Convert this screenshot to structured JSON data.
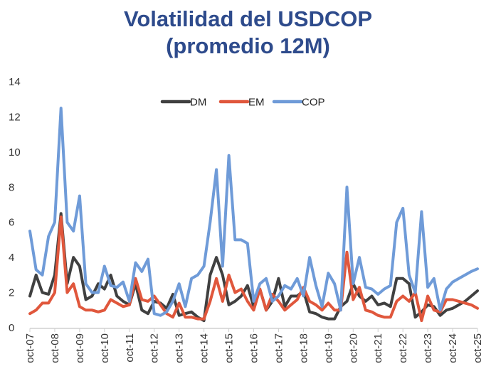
{
  "chart_data": {
    "type": "line",
    "title": "Volatilidad del USDCOP",
    "subtitle": "(promedio 12M)",
    "xlabel": "",
    "ylabel": "",
    "ylim": [
      0,
      14
    ],
    "yticks": [
      0,
      2,
      4,
      6,
      8,
      10,
      12,
      14
    ],
    "grid": false,
    "legend_position": "top-center",
    "xtick_labels": [
      "oct-07",
      "oct-08",
      "oct-09",
      "oct-10",
      "oct-11",
      "oct-12",
      "oct-13",
      "oct-14",
      "oct-15",
      "oct-16",
      "oct-17",
      "oct-18",
      "oct-19",
      "oct-20",
      "oct-21",
      "oct-22",
      "oct-23",
      "oct-24",
      "oct-25"
    ],
    "x_start": "oct-07",
    "x_step": "quarter",
    "series": [
      {
        "name": "DM",
        "color": "#404040",
        "values": [
          1.8,
          3.0,
          2.0,
          1.9,
          3.0,
          6.5,
          2.5,
          4.0,
          3.5,
          1.6,
          1.8,
          2.5,
          2.2,
          3.0,
          1.8,
          1.5,
          1.3,
          2.5,
          1.0,
          0.8,
          1.5,
          1.4,
          1.1,
          1.9,
          0.7,
          0.8,
          0.9,
          0.6,
          0.4,
          3.0,
          4.0,
          3.0,
          1.3,
          1.5,
          1.8,
          2.4,
          1.2,
          2.2,
          1.0,
          1.5,
          2.8,
          1.2,
          1.8,
          1.8,
          2.1,
          0.9,
          0.8,
          0.6,
          0.5,
          0.5,
          1.2,
          1.5,
          2.5,
          1.8,
          1.5,
          1.8,
          1.3,
          1.4,
          1.2,
          2.8,
          2.8,
          2.5,
          0.6,
          0.9,
          1.3,
          1.2,
          0.7,
          1.0,
          1.1,
          1.3,
          1.5,
          1.8,
          2.1
        ]
      },
      {
        "name": "EM",
        "color": "#e0573c",
        "values": [
          0.8,
          1.0,
          1.4,
          1.4,
          2.0,
          6.3,
          2.0,
          2.5,
          1.2,
          1.0,
          1.0,
          0.9,
          1.0,
          1.6,
          1.4,
          1.2,
          1.3,
          2.8,
          1.6,
          1.5,
          1.8,
          1.3,
          0.8,
          0.6,
          1.4,
          0.6,
          0.6,
          0.5,
          0.5,
          1.5,
          2.8,
          1.5,
          3.0,
          2.0,
          2.2,
          1.5,
          1.0,
          2.2,
          1.0,
          1.9,
          1.5,
          1.0,
          1.3,
          1.6,
          2.3,
          1.5,
          1.3,
          1.0,
          1.4,
          1.0,
          1.0,
          4.3,
          1.6,
          2.3,
          1.0,
          0.9,
          0.7,
          0.6,
          0.6,
          1.5,
          1.8,
          1.5,
          2.0,
          0.4,
          1.8,
          1.0,
          0.9,
          1.6,
          1.6,
          1.5,
          1.4,
          1.3,
          1.1
        ]
      },
      {
        "name": "COP",
        "color": "#6f9bd8",
        "values": [
          5.5,
          3.3,
          3.0,
          5.2,
          6.0,
          12.5,
          6.0,
          5.5,
          7.5,
          2.5,
          2.0,
          2.0,
          3.5,
          2.4,
          2.3,
          2.6,
          1.5,
          3.7,
          3.2,
          3.9,
          0.8,
          0.7,
          0.9,
          1.5,
          2.5,
          1.2,
          2.8,
          3.0,
          3.5,
          6.0,
          9.0,
          3.5,
          9.8,
          5.0,
          5.0,
          4.8,
          1.5,
          2.5,
          2.8,
          1.5,
          1.8,
          2.4,
          2.2,
          2.8,
          1.8,
          4.0,
          2.4,
          1.2,
          3.1,
          2.5,
          1.0,
          8.0,
          2.5,
          4.0,
          2.3,
          2.2,
          1.9,
          2.2,
          2.4,
          6.0,
          6.8,
          3.0,
          2.0,
          6.6,
          2.3,
          2.8,
          1.0,
          2.2,
          2.6,
          2.8,
          3.0,
          3.2,
          3.35
        ]
      }
    ]
  }
}
